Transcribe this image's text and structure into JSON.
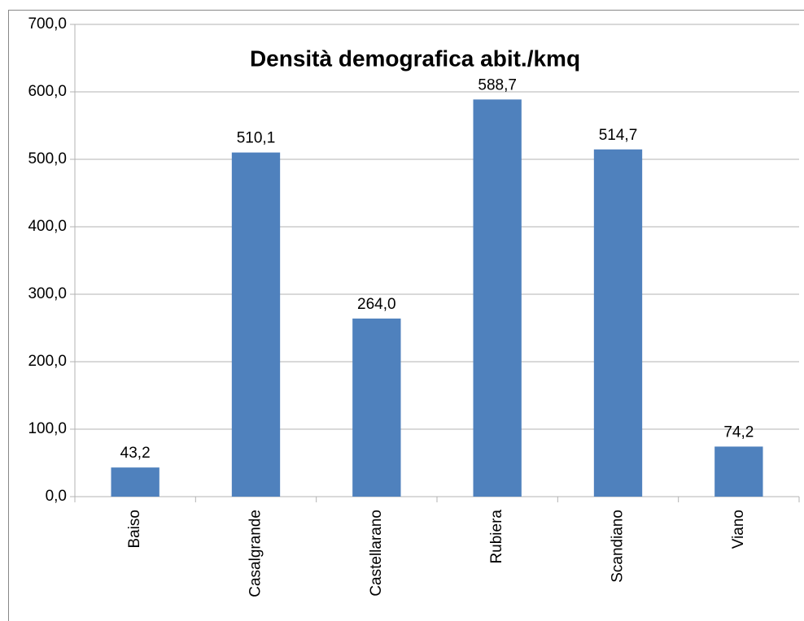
{
  "chart_data": {
    "type": "bar",
    "title": "Densità demografica abit./kmq",
    "categories": [
      "Baiso",
      "Casalgrande",
      "Castellarano",
      "Rubiera",
      "Scandiano",
      "Viano"
    ],
    "values": [
      43.2,
      510.1,
      264.0,
      588.7,
      514.7,
      74.2
    ],
    "value_labels": [
      "43,2",
      "510,1",
      "264,0",
      "588,7",
      "514,7",
      "74,2"
    ],
    "color": "#4f81bd",
    "ylim": [
      0,
      700
    ],
    "yticks": [
      {
        "value": 0,
        "label": "0,0"
      },
      {
        "value": 100,
        "label": "100,0"
      },
      {
        "value": 200,
        "label": "200,0"
      },
      {
        "value": 300,
        "label": "300,0"
      },
      {
        "value": 400,
        "label": "400,0"
      },
      {
        "value": 500,
        "label": "500,0"
      },
      {
        "value": 600,
        "label": "600,0"
      },
      {
        "value": 700,
        "label": "700,0"
      }
    ],
    "grid": true
  }
}
